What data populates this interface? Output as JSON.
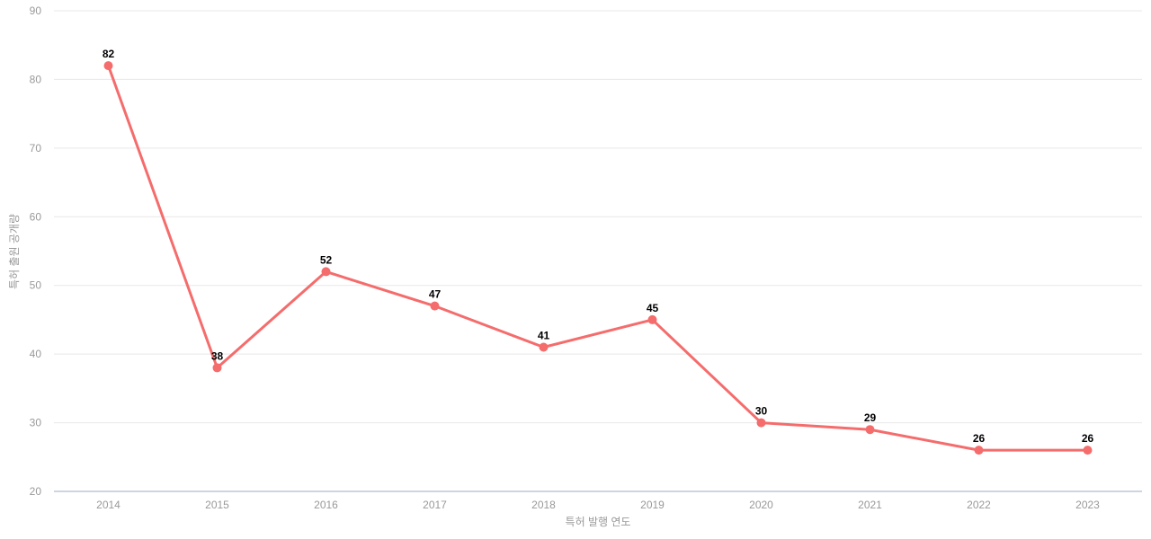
{
  "chart_data": {
    "type": "line",
    "categories": [
      "2014",
      "2015",
      "2016",
      "2017",
      "2018",
      "2019",
      "2020",
      "2021",
      "2022",
      "2023"
    ],
    "values": [
      82,
      38,
      52,
      47,
      41,
      45,
      30,
      29,
      26,
      26
    ],
    "xlabel": "특허 발행 연도",
    "ylabel": "특허 출원 공개량",
    "ylim": [
      20,
      90
    ],
    "ytick_step": 10,
    "yticks": [
      20,
      30,
      40,
      50,
      60,
      70,
      80,
      90
    ],
    "grid": true,
    "legend": "none",
    "colors": {
      "line": "#f56c6c",
      "marker": "#f56c6c",
      "point_label": "#000000",
      "tick_label": "#999999",
      "axis_title": "#999999",
      "gridline": "#e8e8e8",
      "axis_line": "#ccd6e3",
      "background": "#ffffff"
    }
  }
}
